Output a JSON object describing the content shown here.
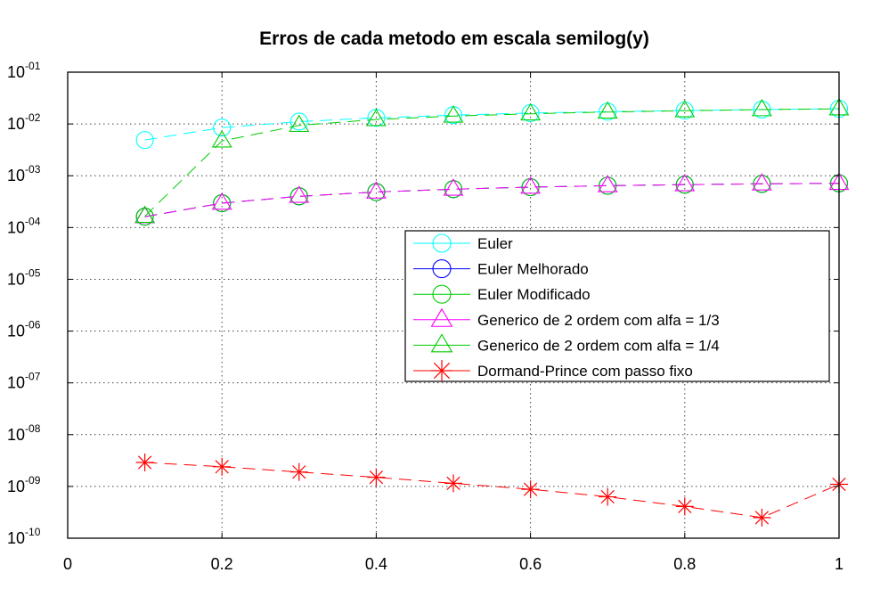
{
  "chart_data": {
    "type": "line",
    "title": "Erros de cada metodo em escala semilog(y)",
    "xlabel": "",
    "ylabel": "",
    "xlim": [
      0,
      1
    ],
    "ylim": [
      1e-10,
      0.1
    ],
    "yscale": "log",
    "grid": true,
    "legend_position": "right-center",
    "x_ticks": [
      {
        "value": 0,
        "label": "0"
      },
      {
        "value": 0.2,
        "label": "0.2"
      },
      {
        "value": 0.4,
        "label": "0.4"
      },
      {
        "value": 0.6,
        "label": "0.6"
      },
      {
        "value": 0.8,
        "label": "0.8"
      },
      {
        "value": 1,
        "label": "1"
      }
    ],
    "y_ticks": [
      {
        "exp": -1,
        "base": "10",
        "sup": "-01"
      },
      {
        "exp": -2,
        "base": "10",
        "sup": "-02"
      },
      {
        "exp": -3,
        "base": "10",
        "sup": "-03"
      },
      {
        "exp": -4,
        "base": "10",
        "sup": "-04"
      },
      {
        "exp": -5,
        "base": "10",
        "sup": "-05"
      },
      {
        "exp": -6,
        "base": "10",
        "sup": "-06"
      },
      {
        "exp": -7,
        "base": "10",
        "sup": "-07"
      },
      {
        "exp": -8,
        "base": "10",
        "sup": "-08"
      },
      {
        "exp": -9,
        "base": "10",
        "sup": "-09"
      },
      {
        "exp": -10,
        "base": "10",
        "sup": "-10"
      }
    ],
    "x": [
      0.1,
      0.2,
      0.3,
      0.4,
      0.5,
      0.6,
      0.7,
      0.8,
      0.9,
      1.0
    ],
    "series": [
      {
        "name": "Euler",
        "color": "#00ffff",
        "marker": "circle",
        "values": [
          0.0049,
          0.0085,
          0.0111,
          0.0131,
          0.0148,
          0.0162,
          0.0173,
          0.0182,
          0.019,
          0.0197
        ]
      },
      {
        "name": "Euler Melhorado",
        "color": "#0000ff",
        "marker": "circle",
        "values": [
          0.000162,
          0.000295,
          0.000401,
          0.000485,
          0.000551,
          0.000603,
          0.000643,
          0.000673,
          0.000697,
          0.000714
        ]
      },
      {
        "name": "Euler Modificado",
        "color": "#00cc00",
        "marker": "circle",
        "values": [
          0.000162,
          0.000295,
          0.000401,
          0.000485,
          0.000551,
          0.000603,
          0.000643,
          0.000673,
          0.000697,
          0.000714
        ]
      },
      {
        "name": "Generico de 2 ordem com alfa = 1/3",
        "color": "#ff00ff",
        "marker": "triangle",
        "values": [
          0.000162,
          0.000295,
          0.000401,
          0.000485,
          0.000551,
          0.000603,
          0.000643,
          0.000673,
          0.000697,
          0.000714
        ]
      },
      {
        "name": "Generico de 2 ordem com alfa = 1/4",
        "color": "#00cc00",
        "marker": "triangle",
        "values": [
          0.000165,
          0.0047,
          0.0094,
          0.0122,
          0.0142,
          0.0157,
          0.017,
          0.018,
          0.0189,
          0.0196
        ]
      },
      {
        "name": "Dormand-Prince com passo fixo",
        "color": "#ff0000",
        "marker": "star",
        "values": [
          2.9e-09,
          2.4e-09,
          1.9e-09,
          1.5e-09,
          1.15e-09,
          8.8e-10,
          6.3e-10,
          4.1e-10,
          2.5e-10,
          1.1e-09
        ]
      }
    ]
  }
}
